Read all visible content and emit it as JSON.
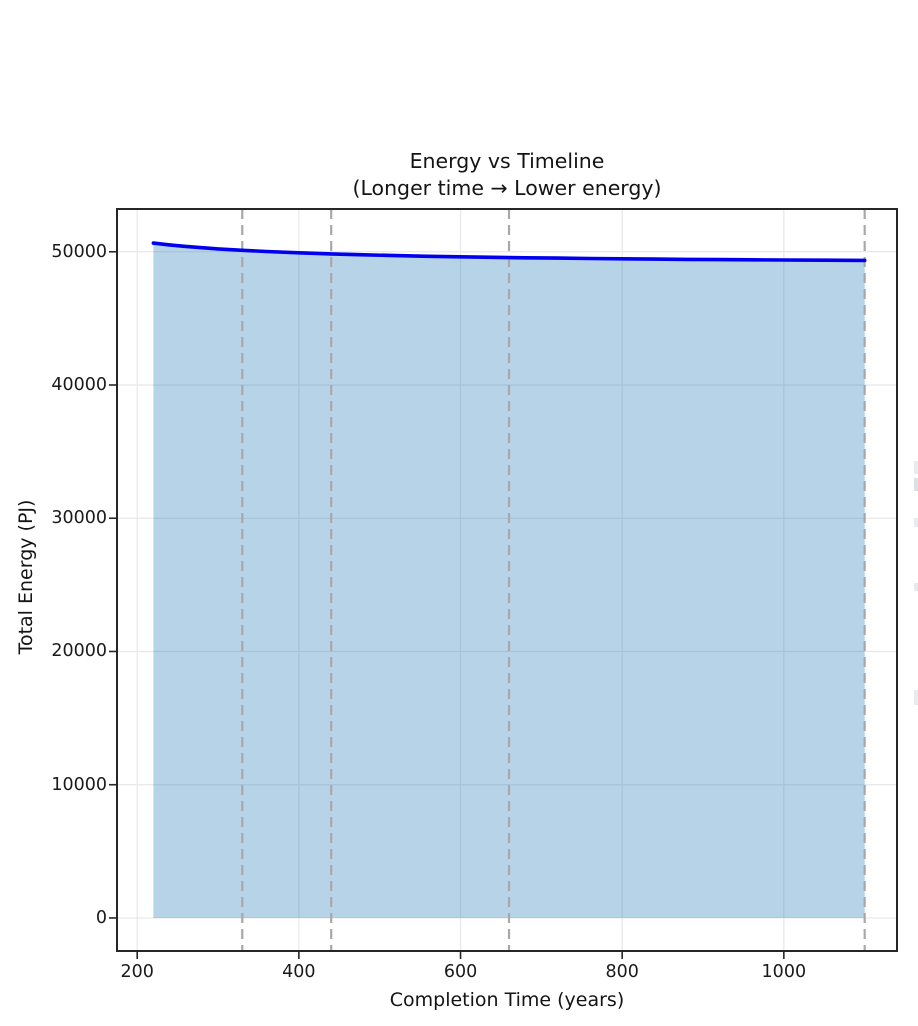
{
  "chart_data": {
    "type": "area",
    "title": "Energy vs Timeline",
    "subtitle": "(Longer time → Lower energy)",
    "xlabel": "Completion Time (years)",
    "ylabel": "Total Energy (PJ)",
    "xlim": [
      175,
      1140
    ],
    "ylim": [
      -2480,
      53210
    ],
    "x_ticks": [
      200,
      400,
      600,
      800,
      1000
    ],
    "y_ticks": [
      0,
      10000,
      20000,
      30000,
      40000,
      50000
    ],
    "grid": true,
    "legend_visible": false,
    "series": [
      {
        "name": "total-energy-curve",
        "x": [
          220,
          240,
          260,
          280,
          300,
          330,
          360,
          400,
          440,
          480,
          520,
          560,
          600,
          640,
          680,
          720,
          760,
          800,
          840,
          880,
          920,
          960,
          1000,
          1050,
          1100
        ],
        "y": [
          50650,
          50515,
          50400,
          50302,
          50217,
          50108,
          50018,
          49919,
          49838,
          49770,
          49713,
          49663,
          49621,
          49584,
          49551,
          49522,
          49495,
          49472,
          49451,
          49431,
          49414,
          49397,
          49383,
          49365,
          49350
        ],
        "line_color": "#0000ee",
        "line_width": 3.6,
        "fill_color": "#1f77b4",
        "fill_opacity": 0.32,
        "fill_baseline": 0
      }
    ],
    "dashed_vlines": {
      "x": [
        330,
        440,
        660,
        1100
      ],
      "color": "#a8a8a8",
      "width": 2.2,
      "dash": "10 6"
    },
    "colors": {
      "background": "#ffffff",
      "grid": "#e7e7e7",
      "spine": "#262626",
      "tick": "#262626",
      "text": "#141414",
      "line": "#0000ee",
      "area": "#c2d8e8"
    }
  }
}
